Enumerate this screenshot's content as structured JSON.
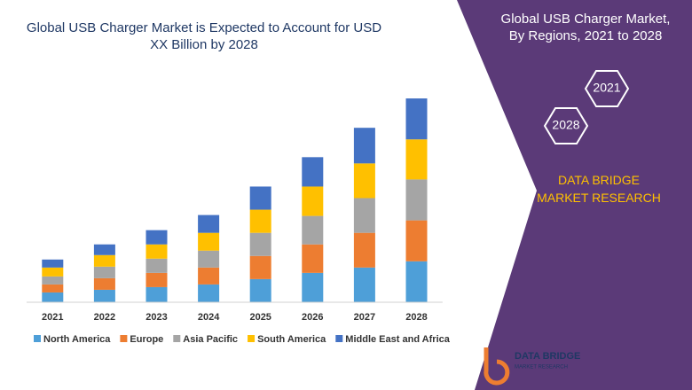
{
  "chart_data": {
    "type": "stacked_bar",
    "title": "Global USB Charger Market is Expected to Account for USD XX Billion by 2028",
    "categories": [
      "2021",
      "2022",
      "2023",
      "2024",
      "2025",
      "2026",
      "2027",
      "2028"
    ],
    "series": [
      {
        "name": "North America",
        "color": "#4e9fd8",
        "values": [
          11,
          14,
          17,
          20,
          26,
          33,
          39,
          46
        ]
      },
      {
        "name": "Europe",
        "color": "#ed7d31",
        "values": [
          9,
          13,
          16,
          19,
          26,
          32,
          39,
          46
        ]
      },
      {
        "name": "Asia Pacific",
        "color": "#a5a5a5",
        "values": [
          9,
          13,
          16,
          19,
          26,
          32,
          39,
          46
        ]
      },
      {
        "name": "South America",
        "color": "#ffc000",
        "values": [
          10,
          13,
          16,
          20,
          26,
          33,
          39,
          45
        ]
      },
      {
        "name": "Middle East and Africa",
        "color": "#4472c4",
        "values": [
          9,
          12,
          16,
          20,
          26,
          33,
          40,
          46
        ]
      }
    ],
    "ylim": [
      0,
      240
    ]
  },
  "side_panel": {
    "title": "Global USB Charger Market, By Regions, 2021 to 2028",
    "hexagons": [
      "2021",
      "2028"
    ],
    "brand": "DATA BRIDGE MARKET RESEARCH"
  },
  "logo": {
    "name": "DATA BRIDGE",
    "tagline": "MARKET RESEARCH"
  }
}
